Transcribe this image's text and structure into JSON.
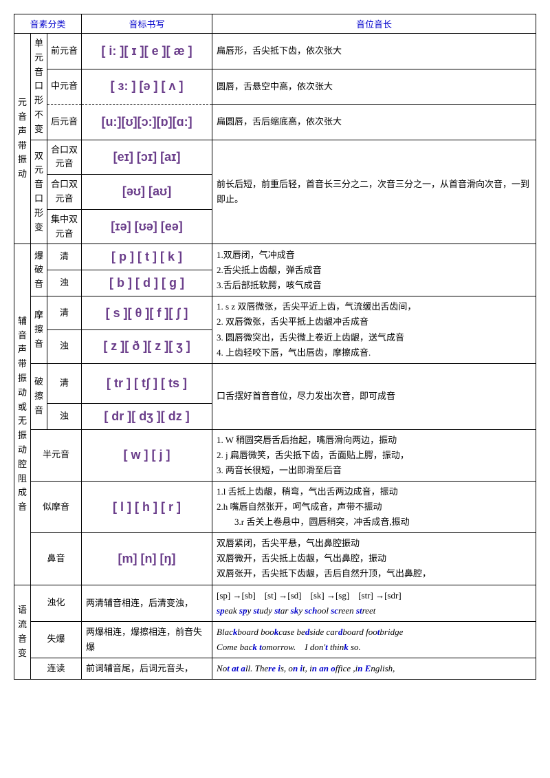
{
  "headers": {
    "c1": "音素分类",
    "c2": "音标书写",
    "c3": "音位音长"
  },
  "vowel": {
    "main": "元音　声带振动",
    "mono": "单元音口形不变",
    "di": "双元音口形变",
    "front": "前元音",
    "mid": "中元音",
    "back": "后元音",
    "close1": "合口双元音",
    "close2": "合口双元音",
    "center": "集中双元音",
    "ipa_front": "[ i: ][ ɪ ][ e ][ æ ]",
    "ipa_mid": "[ ɜ: ] [ə ] [ ʌ ]",
    "ipa_back": "[u:][ʊ][ɔ:][ɒ][ɑ:]",
    "ipa_d1": "[eɪ] [ɔɪ] [aɪ]",
    "ipa_d2": "[əʊ] [aʊ]",
    "ipa_d3": "[ɪə] [ʊə] [eə]",
    "desc_front": "扁唇形，舌尖抵下齿，依次张大",
    "desc_mid": "圆唇，舌悬空中高，依次张大",
    "desc_back": "扁圆唇，舌后缩底高，依次张大",
    "desc_di": "前长后短，前重后轻，首音长三分之二，次音三分之一，从首音滑向次音，一到即止。"
  },
  "consonant": {
    "main": "辅音　声带振动或无振动　腔阻成音",
    "plosive": "爆破音",
    "fricative": "摩擦音",
    "affricate": "破擦音",
    "semi": "半元音",
    "approx": "似摩音",
    "nasal": "鼻音",
    "voiceless": "清",
    "voiced": "浊",
    "ipa_p1": "[ p ] [ t ] [ k ]",
    "ipa_p2": "[ b ] [ d ] [ g ]",
    "ipa_f1": "[ s ][ θ ][ f ][ ʃ ]",
    "ipa_f2": "[ z ][ ð ][ z ][ ʒ ]",
    "ipa_a1": "[ tr ] [ tʃ ] [ ts ]",
    "ipa_a2": "[ dr ][ dʒ ][ dz ]",
    "ipa_semi": "[ w ] [ j ]",
    "ipa_approx": "[ l ] [ h ] [ r ]",
    "ipa_nasal": "[m] [n] [ŋ]",
    "desc_plosive": "1.双唇闭，气冲成音\n2.舌尖抵上齿龈，弹舌成音\n3.舌后部抵软腭，咳气成音",
    "desc_fricative": "1. s z 双唇微张，舌尖平近上齿，气流缓出舌齿间，\n2. 双唇微张，舌尖平抵上齿龈冲舌成音\n3. 圆唇微突出，舌尖微上卷近上齿龈，送气成音\n4. 上齿轻咬下唇，气出唇齿，摩擦成音.",
    "desc_affricate": "口舌摆好首音音位，尽力发出次音，即可成音",
    "desc_semi": "1. W 稍圆突唇舌后抬起，嘴唇滑向两边，振动\n2. j 扁唇微笑，舌尖抵下齿，舌面贴上腭，振动，\n3. 两音长很短，一出即滑至后音",
    "desc_approx": "1.l 舌抵上齿龈，稍弯，气出舌两边成音，振动\n2.h 嘴唇自然张开，呵气成音，声带不振动\n　　3.r 舌关上卷悬中，圆唇稍突，冲舌成音,振动",
    "desc_nasal": "双唇紧闭，舌尖平悬，气出鼻腔振动\n双唇微开，舌尖抵上齿龈，气出鼻腔，振动\n双唇张开，舌尖抵下齿龈，舌后自然升顶，气出鼻腔，"
  },
  "flow": {
    "main": "语流音变",
    "voicing": "浊化",
    "loss": "失爆",
    "liaison": "连读",
    "desc_voicing": "两清辅音相连，后清变浊，",
    "desc_loss": "两爆相连，爆擦相连，前音失爆",
    "desc_liaison": "前词辅音尾，后词元音头，"
  }
}
